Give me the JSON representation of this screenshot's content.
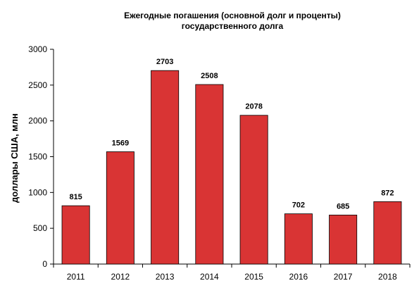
{
  "chart_data": {
    "type": "bar",
    "title_lines": [
      "Ежегодные погашения (основной долг и проценты)",
      "государственного долга"
    ],
    "xlabel": "",
    "ylabel": "доллары США, млн",
    "categories": [
      "2011",
      "2012",
      "2013",
      "2014",
      "2015",
      "2016",
      "2017",
      "2018"
    ],
    "values": [
      815,
      1569,
      2703,
      2508,
      2078,
      702,
      685,
      872
    ],
    "data_labels": [
      "815",
      "1569",
      "2703",
      "2508",
      "2078",
      "702",
      "685",
      "872"
    ],
    "ylim": [
      0,
      3000
    ],
    "yticks": [
      0,
      500,
      1000,
      1500,
      2000,
      2500,
      3000
    ],
    "ytick_labels": [
      "0",
      "500",
      "1000",
      "1500",
      "2000",
      "2500",
      "3000"
    ],
    "grid": false,
    "legend": "none",
    "colors": {
      "bar": "#d93434",
      "bar_edge": "#000000",
      "axis": "#000000"
    }
  }
}
